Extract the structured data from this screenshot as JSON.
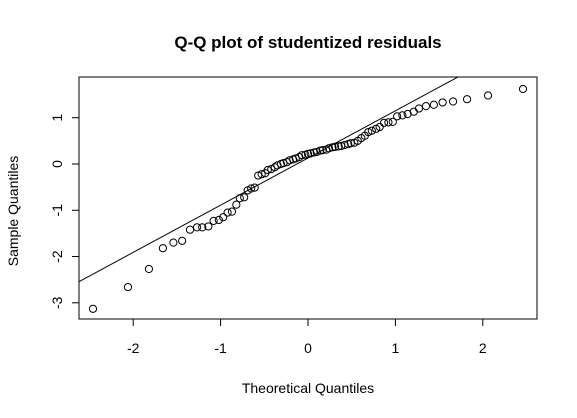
{
  "chart_data": {
    "type": "scatter",
    "title": "Q-Q plot of studentized residuals",
    "xlabel": "Theoretical Quantiles",
    "ylabel": "Sample Quantiles",
    "xlim": [
      -2.62,
      2.62
    ],
    "ylim": [
      -3.35,
      1.88
    ],
    "xticks": [
      -2,
      -1,
      0,
      1,
      2
    ],
    "yticks": [
      -3,
      -2,
      -1,
      0,
      1
    ],
    "xtick_labels": [
      "-2",
      "-1",
      "0",
      "1",
      "2"
    ],
    "ytick_labels": [
      "-3",
      "-2",
      "-1",
      "0",
      "1"
    ],
    "grid": false,
    "reference_line": {
      "intercept": 0.13,
      "slope": 1.02
    },
    "points": {
      "x": [
        -2.46,
        -2.06,
        -1.82,
        -1.66,
        -1.54,
        -1.44,
        -1.35,
        -1.27,
        -1.21,
        -1.14,
        -1.08,
        -1.02,
        -0.97,
        -0.92,
        -0.87,
        -0.82,
        -0.78,
        -0.73,
        -0.69,
        -0.65,
        -0.61,
        -0.57,
        -0.53,
        -0.49,
        -0.46,
        -0.42,
        -0.38,
        -0.35,
        -0.31,
        -0.28,
        -0.24,
        -0.21,
        -0.17,
        -0.14,
        -0.1,
        -0.07,
        -0.03,
        0.0,
        0.03,
        0.07,
        0.1,
        0.14,
        0.17,
        0.21,
        0.24,
        0.28,
        0.31,
        0.35,
        0.38,
        0.42,
        0.46,
        0.49,
        0.53,
        0.57,
        0.61,
        0.65,
        0.69,
        0.73,
        0.78,
        0.82,
        0.87,
        0.92,
        0.97,
        1.02,
        1.08,
        1.14,
        1.21,
        1.27,
        1.35,
        1.44,
        1.54,
        1.66,
        1.82,
        2.06,
        2.46
      ],
      "y": [
        -3.13,
        -2.66,
        -2.27,
        -1.82,
        -1.7,
        -1.66,
        -1.42,
        -1.37,
        -1.37,
        -1.35,
        -1.23,
        -1.21,
        -1.15,
        -1.05,
        -1.03,
        -0.88,
        -0.74,
        -0.72,
        -0.57,
        -0.53,
        -0.51,
        -0.25,
        -0.22,
        -0.2,
        -0.13,
        -0.11,
        -0.07,
        -0.03,
        0.0,
        0.02,
        0.04,
        0.08,
        0.1,
        0.12,
        0.15,
        0.19,
        0.2,
        0.22,
        0.23,
        0.25,
        0.26,
        0.29,
        0.3,
        0.31,
        0.34,
        0.36,
        0.37,
        0.38,
        0.39,
        0.41,
        0.43,
        0.45,
        0.46,
        0.5,
        0.56,
        0.61,
        0.69,
        0.72,
        0.76,
        0.8,
        0.89,
        0.9,
        0.91,
        1.03,
        1.05,
        1.08,
        1.13,
        1.2,
        1.25,
        1.28,
        1.33,
        1.35,
        1.4,
        1.48,
        1.62
      ]
    }
  }
}
